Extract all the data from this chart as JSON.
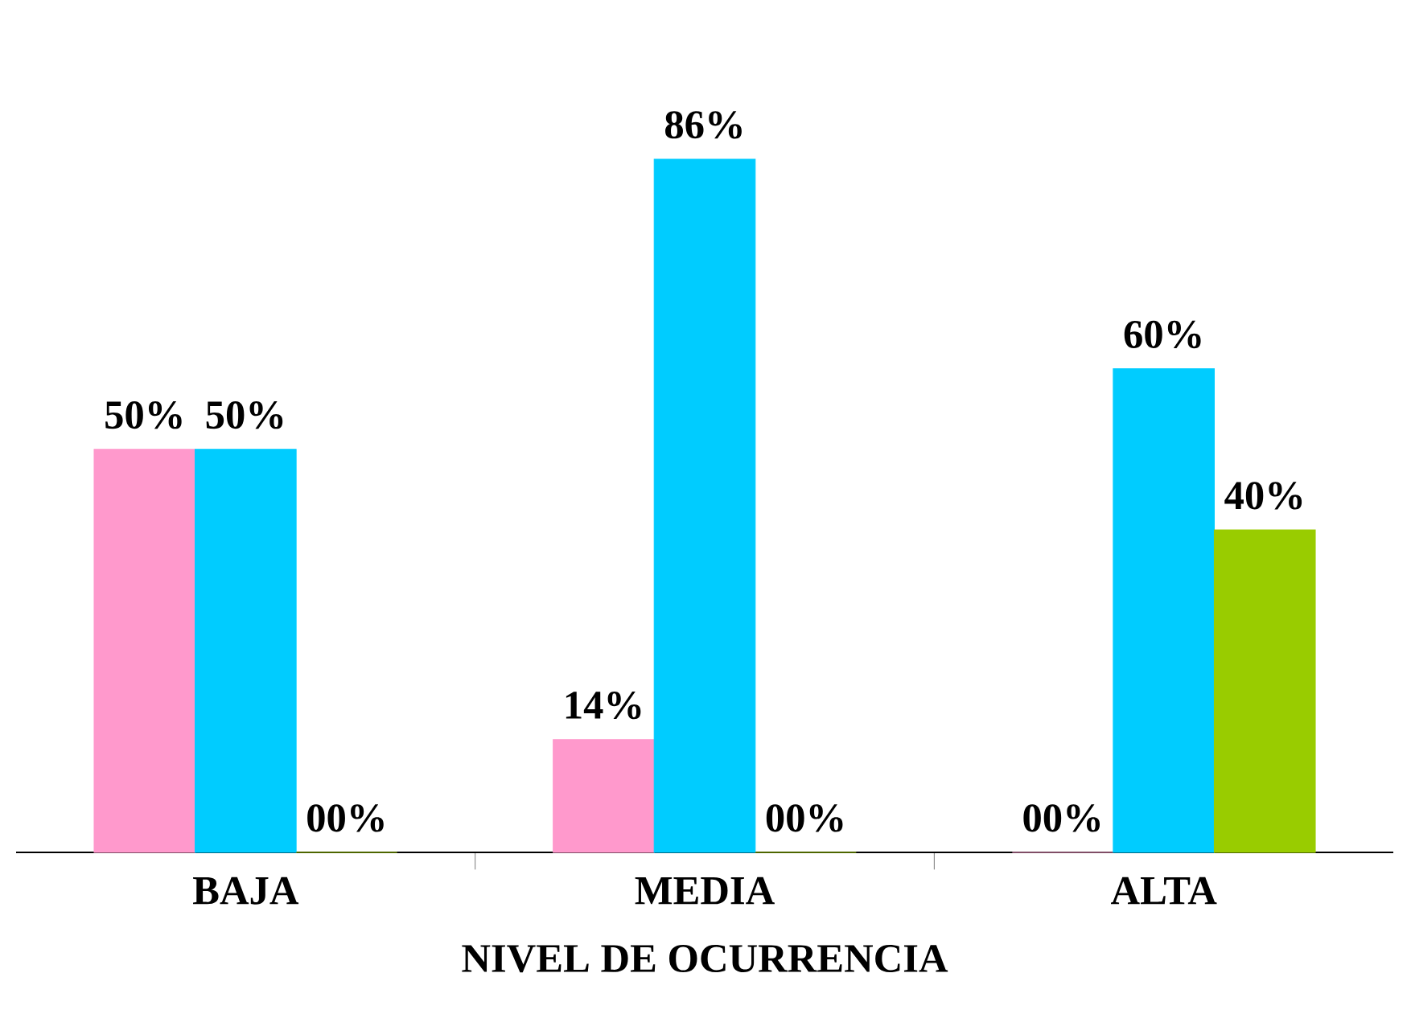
{
  "chart_data": {
    "type": "bar",
    "xlabel": "NIVEL DE OCURRENCIA",
    "categories": [
      "BAJA",
      "MEDIA",
      "ALTA"
    ],
    "series": [
      {
        "color": "#ff99cc",
        "values": [
          50,
          14,
          0
        ],
        "value_labels": [
          "50%",
          "14%",
          "00%"
        ]
      },
      {
        "color": "#00ccff",
        "values": [
          50,
          86,
          60
        ],
        "value_labels": [
          "50%",
          "86%",
          "60%"
        ]
      },
      {
        "color": "#99cc00",
        "values": [
          0,
          0,
          40
        ],
        "value_labels": [
          "00%",
          "00%",
          "40%"
        ]
      }
    ]
  }
}
